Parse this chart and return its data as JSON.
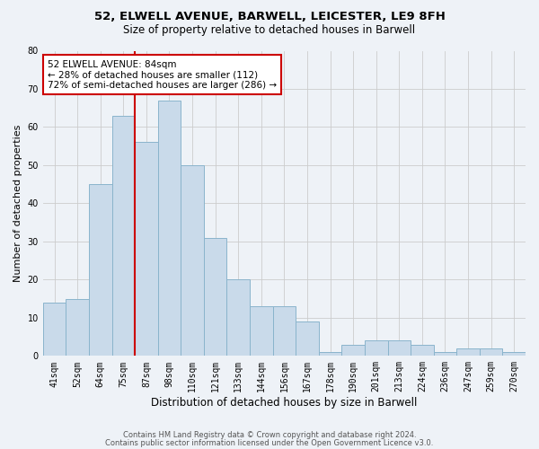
{
  "title1": "52, ELWELL AVENUE, BARWELL, LEICESTER, LE9 8FH",
  "title2": "Size of property relative to detached houses in Barwell",
  "xlabel": "Distribution of detached houses by size in Barwell",
  "ylabel": "Number of detached properties",
  "categories": [
    "41sqm",
    "52sqm",
    "64sqm",
    "75sqm",
    "87sqm",
    "98sqm",
    "110sqm",
    "121sqm",
    "133sqm",
    "144sqm",
    "156sqm",
    "167sqm",
    "178sqm",
    "190sqm",
    "201sqm",
    "213sqm",
    "224sqm",
    "236sqm",
    "247sqm",
    "259sqm",
    "270sqm"
  ],
  "values": [
    14,
    15,
    45,
    63,
    56,
    67,
    50,
    31,
    20,
    13,
    13,
    9,
    1,
    3,
    4,
    4,
    3,
    1,
    2,
    2,
    1
  ],
  "bar_color": "#c9daea",
  "bar_edge_color": "#8ab4cc",
  "bar_edge_width": 0.7,
  "red_line_color": "#cc0000",
  "red_line_x": 3.5,
  "annotation_text": "52 ELWELL AVENUE: 84sqm\n← 28% of detached houses are smaller (112)\n72% of semi-detached houses are larger (286) →",
  "annotation_box_color": "#ffffff",
  "annotation_box_edge": "#cc0000",
  "ylim": [
    0,
    80
  ],
  "yticks": [
    0,
    10,
    20,
    30,
    40,
    50,
    60,
    70,
    80
  ],
  "grid_color": "#cccccc",
  "background_color": "#eef2f7",
  "footer1": "Contains HM Land Registry data © Crown copyright and database right 2024.",
  "footer2": "Contains public sector information licensed under the Open Government Licence v3.0."
}
